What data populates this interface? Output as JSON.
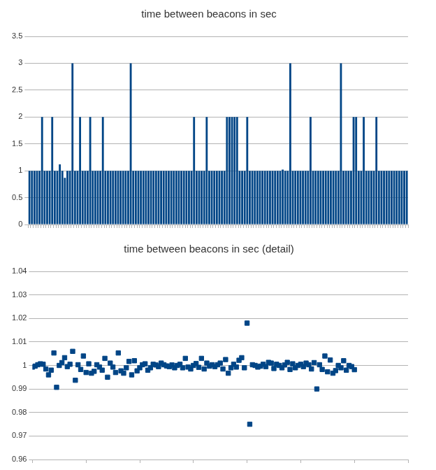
{
  "chart_data": [
    {
      "type": "bar",
      "title": "time between beacons in sec",
      "categories": [
        null,
        null,
        null,
        null,
        null,
        null,
        null,
        null,
        null,
        null,
        null,
        null,
        null,
        null,
        null,
        null,
        null,
        null,
        null,
        null,
        null,
        null,
        null,
        null,
        null,
        null,
        null,
        null,
        null,
        null,
        null,
        null,
        null,
        null,
        null,
        null,
        null,
        null,
        null,
        null,
        null,
        null,
        null,
        null,
        null,
        null,
        null,
        null,
        null,
        null,
        null,
        null,
        null,
        null,
        null,
        null,
        null,
        null,
        null,
        null,
        null,
        null,
        null,
        null,
        null,
        null,
        null,
        null,
        null,
        null,
        null,
        null,
        null,
        null,
        null,
        null,
        null,
        null,
        null,
        null,
        null,
        null,
        null,
        null,
        null,
        null,
        null,
        null,
        null,
        null,
        null,
        null,
        null,
        null,
        null,
        null,
        null,
        null,
        null,
        null,
        null,
        null,
        null,
        null,
        null,
        null,
        null,
        null,
        null,
        null,
        null,
        null,
        null,
        null,
        null,
        null,
        null,
        null,
        null,
        null,
        null,
        null,
        null,
        null,
        null,
        null,
        null,
        null,
        null,
        null,
        null,
        null,
        null,
        null,
        null,
        null,
        null,
        null,
        null,
        null,
        null,
        null,
        null,
        null,
        null,
        null,
        null,
        null,
        null,
        null
      ],
      "values": [
        1,
        1,
        1,
        1,
        1,
        2,
        1,
        1,
        1,
        2,
        1,
        1,
        1.12,
        1,
        0.87,
        1,
        1,
        3,
        1,
        1,
        2,
        1,
        1,
        1,
        2,
        1,
        1,
        1,
        1,
        2,
        1,
        1,
        1,
        1,
        1,
        1,
        1,
        1,
        1,
        1,
        3,
        1,
        1,
        1,
        1,
        1,
        1,
        1,
        1,
        1,
        1,
        1,
        1,
        1,
        1,
        1,
        1,
        1,
        1,
        1,
        1,
        1,
        1,
        1,
        1,
        2,
        1,
        1,
        1,
        1,
        2,
        1,
        1,
        1,
        1,
        1,
        1,
        1,
        2,
        2,
        2,
        2,
        2,
        1,
        1,
        1,
        2,
        1,
        1,
        1,
        1,
        1,
        1,
        1,
        1,
        1,
        1,
        1,
        1,
        1,
        1.02,
        1,
        1,
        3,
        1,
        1,
        1,
        1,
        1,
        1,
        1,
        2,
        1,
        1,
        1,
        1,
        1,
        1,
        1,
        1,
        1,
        1,
        1,
        3,
        1,
        1,
        1,
        1,
        2,
        2,
        1,
        1,
        2,
        1,
        1,
        1,
        1,
        2,
        1,
        1,
        1,
        1,
        1,
        1,
        1,
        1,
        1,
        1,
        1,
        1
      ],
      "color": "#004586",
      "ylim": [
        0,
        3.5
      ],
      "yticks": [
        0,
        0.5,
        1,
        1.5,
        2,
        2.5,
        3,
        3.5
      ],
      "grid": true,
      "tick_labels": "y"
    },
    {
      "type": "scatter",
      "title": "time between beacons in sec (detail)",
      "x": [
        0,
        1,
        2,
        3,
        4,
        5,
        6,
        7,
        8,
        9,
        10,
        11,
        12,
        13,
        14,
        15,
        16,
        17,
        18,
        19,
        20,
        21,
        22,
        23,
        24,
        25,
        26,
        27,
        28,
        29,
        30,
        31,
        32,
        33,
        34,
        35,
        36,
        37,
        38,
        39,
        40,
        41,
        42,
        43,
        44,
        45,
        46,
        47,
        48,
        49,
        50,
        51,
        52,
        53,
        54,
        55,
        56,
        57,
        58,
        59,
        60,
        61,
        62,
        63,
        64,
        65,
        66,
        67,
        68,
        69,
        70,
        71,
        72,
        73,
        74,
        75,
        76,
        77,
        78,
        79,
        80,
        81,
        82,
        83,
        84,
        85,
        86,
        87,
        88,
        89,
        90,
        91,
        92,
        93,
        94,
        95,
        96,
        97,
        98,
        99,
        100,
        101,
        102,
        103,
        104,
        105,
        106,
        107,
        108,
        109,
        110,
        111,
        112,
        113,
        114,
        115,
        116,
        117,
        118,
        119,
        120
      ],
      "values": [
        0.9993,
        0.9997,
        1.0003,
        1.0007,
        1.0005,
        0.9985,
        0.996,
        0.998,
        1.0053,
        0.9907,
        1,
        1.0012,
        1.0033,
        0.9995,
        1.0005,
        1.006,
        0.9937,
        1.0003,
        0.9983,
        1.004,
        0.997,
        1.0007,
        0.9967,
        0.9975,
        1.0003,
        0.9993,
        0.998,
        1.003,
        0.995,
        1.001,
        0.9993,
        0.997,
        1.0053,
        0.9977,
        0.9967,
        0.999,
        1.0017,
        0.996,
        1.002,
        0.9977,
        0.999,
        1.0003,
        1.0007,
        0.998,
        0.999,
        1.0005,
        1.0002,
        0.9995,
        1.001,
        1.0003,
        0.9998,
        0.9995,
        1.0002,
        0.999,
        1,
        1.0005,
        0.999,
        1.003,
        0.9993,
        0.9985,
        1,
        1.0008,
        0.9992,
        1.003,
        0.9985,
        1.001,
        0.9997,
        1.0003,
        0.9995,
        1.0003,
        1.001,
        0.9985,
        1.0025,
        0.9967,
        0.999,
        1.0005,
        0.9993,
        1.0022,
        1.0033,
        0.999,
        1.018,
        0.975,
        1.0003,
        1,
        0.9993,
        0.9997,
        1.0005,
        0.9995,
        1.0013,
        1.001,
        0.9987,
        1.0005,
        1,
        0.999,
        1.0002,
        1.0013,
        0.9983,
        1.0007,
        0.999,
        1,
        1.0005,
        0.9995,
        1.001,
        1.0003,
        0.9985,
        1.0012,
        0.99,
        1.0003,
        0.9983,
        1.004,
        0.9973,
        1.0023,
        0.9967,
        0.9978,
        1,
        0.999,
        1.002,
        0.998,
        1,
        0.9995,
        0.9982
      ],
      "color": "#004586",
      "marker": "square",
      "xlim": [
        0,
        140
      ],
      "xticks": [
        0,
        20,
        40,
        60,
        80,
        100,
        120,
        140
      ],
      "ylim": [
        0.96,
        1.04
      ],
      "yticks": [
        0.96,
        0.97,
        0.98,
        0.99,
        1,
        1.01,
        1.02,
        1.03,
        1.04
      ],
      "grid": true,
      "tick_labels": "y"
    }
  ]
}
